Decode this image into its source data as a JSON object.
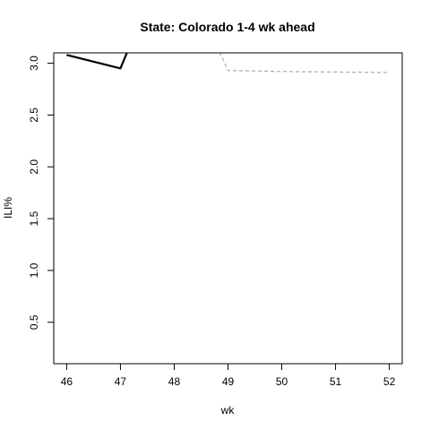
{
  "chart_data": {
    "type": "line",
    "title": "State: Colorado 1-4 wk ahead",
    "xlabel": "wk",
    "ylabel": "ILI%",
    "xlim": [
      46,
      52
    ],
    "ylim": [
      0.1,
      3.1
    ],
    "x_ticks": [
      "46",
      "47",
      "48",
      "49",
      "50",
      "51",
      "52"
    ],
    "y_ticks": [
      "0.5",
      "1.0",
      "1.5",
      "2.0",
      "2.5",
      "3.0"
    ],
    "grid": false,
    "legend": "none",
    "series": [
      {
        "style": "solid",
        "color": "#000000",
        "x": [
          46,
          47,
          48
        ],
        "y": [
          3.08,
          2.95,
          4.2
        ]
      },
      {
        "style": "dashed",
        "color": "#aaaaaa",
        "x": [
          48.4,
          49,
          50,
          51,
          52
        ],
        "y": [
          3.6,
          2.93,
          2.92,
          2.915,
          2.91
        ]
      }
    ]
  }
}
